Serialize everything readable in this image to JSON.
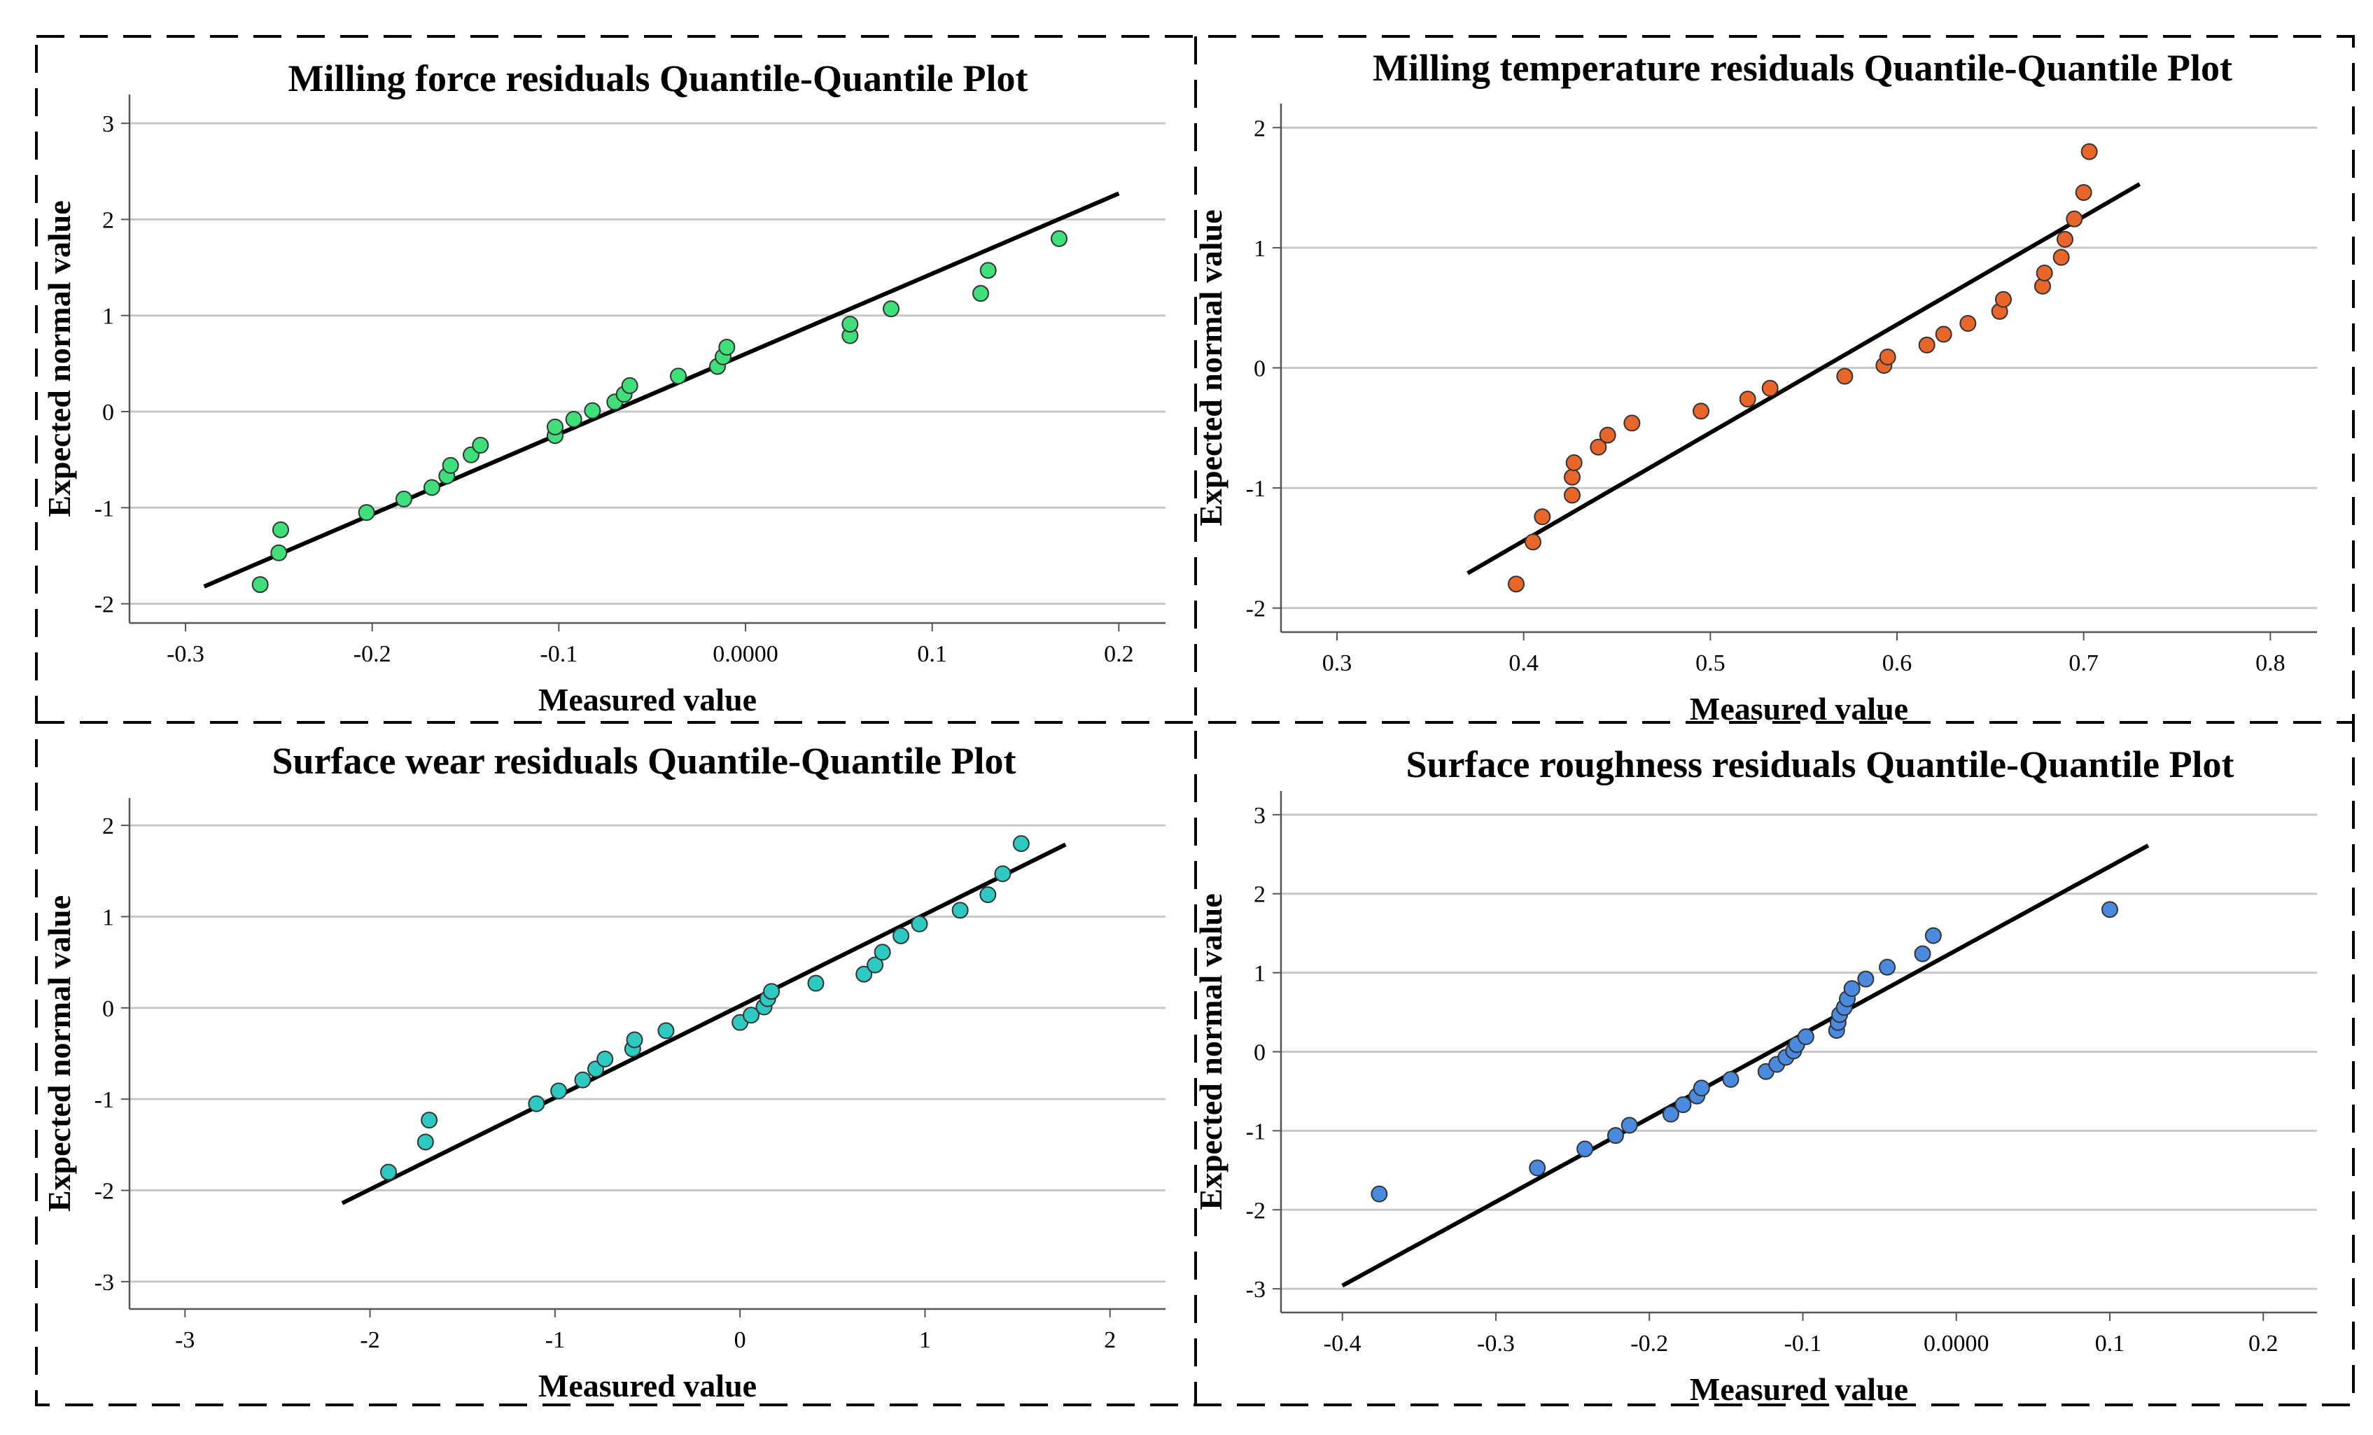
{
  "chart_data": [
    {
      "type": "scatter",
      "title": "Milling force residuals Quantile-Quantile Plot",
      "xlabel": "Measured value",
      "ylabel": "Expected normal value",
      "xlim": [
        -0.33,
        0.225
      ],
      "ylim": [
        -2.2,
        3.3
      ],
      "xticks": [
        -0.3,
        -0.2,
        -0.1,
        0.0,
        0.1,
        0.2
      ],
      "xtick_labels": [
        "-0.3",
        "-0.2",
        "-0.1",
        "0.0000",
        "0.1",
        "0.2"
      ],
      "yticks": [
        -2,
        -1,
        0,
        1,
        2,
        3
      ],
      "ytick_labels": [
        "-2",
        "-1",
        "0",
        "1",
        "2",
        "3"
      ],
      "color": "#3fe07a",
      "points": [
        [
          -0.26,
          -1.8
        ],
        [
          -0.25,
          -1.47
        ],
        [
          -0.249,
          -1.23
        ],
        [
          -0.203,
          -1.05
        ],
        [
          -0.183,
          -0.91
        ],
        [
          -0.168,
          -0.79
        ],
        [
          -0.16,
          -0.67
        ],
        [
          -0.158,
          -0.56
        ],
        [
          -0.147,
          -0.45
        ],
        [
          -0.142,
          -0.35
        ],
        [
          -0.102,
          -0.25
        ],
        [
          -0.102,
          -0.16
        ],
        [
          -0.092,
          -0.08
        ],
        [
          -0.082,
          0.01
        ],
        [
          -0.07,
          0.1
        ],
        [
          -0.065,
          0.18
        ],
        [
          -0.062,
          0.27
        ],
        [
          -0.036,
          0.37
        ],
        [
          -0.015,
          0.47
        ],
        [
          -0.012,
          0.57
        ],
        [
          -0.01,
          0.67
        ],
        [
          0.056,
          0.79
        ],
        [
          0.056,
          0.91
        ],
        [
          0.078,
          1.07
        ],
        [
          0.126,
          1.23
        ],
        [
          0.13,
          1.47
        ],
        [
          0.168,
          1.8
        ]
      ],
      "reference_line": [
        [
          -0.29,
          -1.82
        ],
        [
          0.2,
          2.27
        ]
      ]
    },
    {
      "type": "scatter",
      "title": "Milling temperature residuals Quantile-Quantile Plot",
      "xlabel": "Measured value",
      "ylabel": "Expected normal value",
      "xlim": [
        0.27,
        0.825
      ],
      "ylim": [
        -2.2,
        2.2
      ],
      "xticks": [
        0.3,
        0.4,
        0.5,
        0.6,
        0.7,
        0.8
      ],
      "xtick_labels": [
        "0.3",
        "0.4",
        "0.5",
        "0.6",
        "0.7",
        "0.8"
      ],
      "yticks": [
        -2,
        -1,
        0,
        1,
        2
      ],
      "ytick_labels": [
        "-2",
        "-1",
        "0",
        "1",
        "2"
      ],
      "color": "#e8662a",
      "points": [
        [
          0.396,
          -1.8
        ],
        [
          0.405,
          -1.45
        ],
        [
          0.41,
          -1.24
        ],
        [
          0.426,
          -1.06
        ],
        [
          0.426,
          -0.91
        ],
        [
          0.427,
          -0.79
        ],
        [
          0.44,
          -0.66
        ],
        [
          0.445,
          -0.56
        ],
        [
          0.458,
          -0.46
        ],
        [
          0.495,
          -0.36
        ],
        [
          0.52,
          -0.26
        ],
        [
          0.532,
          -0.17
        ],
        [
          0.572,
          -0.07
        ],
        [
          0.593,
          0.02
        ],
        [
          0.595,
          0.09
        ],
        [
          0.616,
          0.19
        ],
        [
          0.625,
          0.28
        ],
        [
          0.638,
          0.37
        ],
        [
          0.655,
          0.47
        ],
        [
          0.657,
          0.57
        ],
        [
          0.678,
          0.68
        ],
        [
          0.679,
          0.79
        ],
        [
          0.688,
          0.92
        ],
        [
          0.69,
          1.07
        ],
        [
          0.695,
          1.24
        ],
        [
          0.7,
          1.46
        ],
        [
          0.703,
          1.8
        ]
      ],
      "reference_line": [
        [
          0.37,
          -1.71
        ],
        [
          0.73,
          1.53
        ]
      ]
    },
    {
      "type": "scatter",
      "title": "Surface wear residuals Quantile-Quantile Plot",
      "xlabel": "Measured value",
      "ylabel": "Expected normal value",
      "xlim": [
        -3.3,
        2.3
      ],
      "ylim": [
        -3.3,
        2.3
      ],
      "xticks": [
        -3,
        -2,
        -1,
        0,
        1,
        2
      ],
      "xtick_labels": [
        "-3",
        "-2",
        "-1",
        "0",
        "1",
        "2"
      ],
      "yticks": [
        -3,
        -2,
        -1,
        0,
        1,
        2
      ],
      "ytick_labels": [
        "-3",
        "-2",
        "-1",
        "0",
        "1",
        "2"
      ],
      "color": "#2ec9c1",
      "points": [
        [
          -1.9,
          -1.8
        ],
        [
          -1.7,
          -1.47
        ],
        [
          -1.68,
          -1.23
        ],
        [
          -1.1,
          -1.05
        ],
        [
          -0.98,
          -0.91
        ],
        [
          -0.85,
          -0.79
        ],
        [
          -0.78,
          -0.67
        ],
        [
          -0.73,
          -0.56
        ],
        [
          -0.58,
          -0.45
        ],
        [
          -0.57,
          -0.35
        ],
        [
          -0.4,
          -0.25
        ],
        [
          0.0,
          -0.16
        ],
        [
          0.06,
          -0.08
        ],
        [
          0.13,
          0.01
        ],
        [
          0.15,
          0.1
        ],
        [
          0.17,
          0.18
        ],
        [
          0.41,
          0.27
        ],
        [
          0.67,
          0.37
        ],
        [
          0.73,
          0.47
        ],
        [
          0.77,
          0.61
        ],
        [
          0.87,
          0.79
        ],
        [
          0.97,
          0.92
        ],
        [
          1.19,
          1.07
        ],
        [
          1.34,
          1.24
        ],
        [
          1.42,
          1.47
        ],
        [
          1.52,
          1.8
        ]
      ],
      "reference_line": [
        [
          -2.15,
          -2.14
        ],
        [
          1.76,
          1.79
        ]
      ]
    },
    {
      "type": "scatter",
      "title": "Surface roughness residuals Quantile-Quantile Plot",
      "xlabel": "Measured value",
      "ylabel": "Expected normal value",
      "xlim": [
        -0.44,
        0.235
      ],
      "ylim": [
        -3.3,
        3.3
      ],
      "xticks": [
        -0.4,
        -0.3,
        -0.2,
        -0.1,
        0.0,
        0.1,
        0.2
      ],
      "xtick_labels": [
        "-0.4",
        "-0.3",
        "-0.2",
        "-0.1",
        "0.0000",
        "0.1",
        "0.2"
      ],
      "yticks": [
        -3,
        -2,
        -1,
        0,
        1,
        2,
        3
      ],
      "ytick_labels": [
        "-3",
        "-2",
        "-1",
        "0",
        "1",
        "2",
        "3"
      ],
      "color": "#4a8be0",
      "points": [
        [
          -0.376,
          -1.8
        ],
        [
          -0.273,
          -1.47
        ],
        [
          -0.242,
          -1.23
        ],
        [
          -0.222,
          -1.06
        ],
        [
          -0.213,
          -0.93
        ],
        [
          -0.186,
          -0.79
        ],
        [
          -0.178,
          -0.67
        ],
        [
          -0.169,
          -0.56
        ],
        [
          -0.166,
          -0.46
        ],
        [
          -0.147,
          -0.35
        ],
        [
          -0.124,
          -0.25
        ],
        [
          -0.117,
          -0.16
        ],
        [
          -0.111,
          -0.07
        ],
        [
          -0.106,
          0.01
        ],
        [
          -0.104,
          0.09
        ],
        [
          -0.098,
          0.19
        ],
        [
          -0.078,
          0.27
        ],
        [
          -0.077,
          0.37
        ],
        [
          -0.076,
          0.47
        ],
        [
          -0.073,
          0.56
        ],
        [
          -0.071,
          0.67
        ],
        [
          -0.068,
          0.8
        ],
        [
          -0.059,
          0.92
        ],
        [
          -0.045,
          1.07
        ],
        [
          -0.022,
          1.24
        ],
        [
          -0.015,
          1.47
        ],
        [
          0.1,
          1.8
        ]
      ],
      "reference_line": [
        [
          -0.4,
          -2.96
        ],
        [
          0.125,
          2.61
        ]
      ]
    }
  ]
}
